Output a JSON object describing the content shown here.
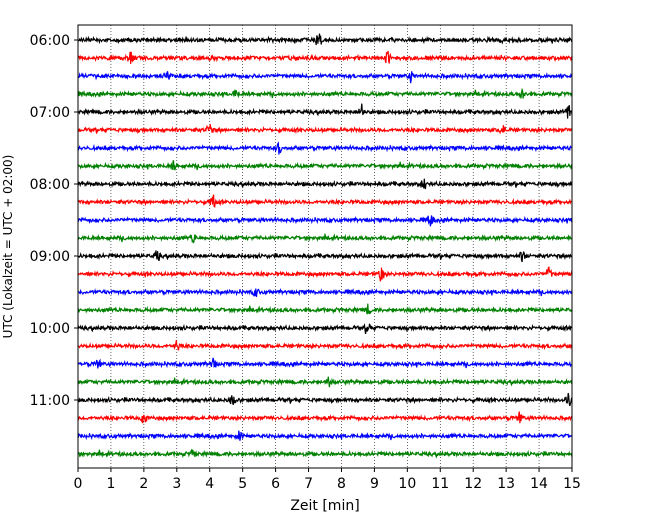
{
  "chart_data": {
    "type": "line",
    "title": "",
    "xlabel": "Zeit  [min]",
    "ylabel": "UTC (Lokalzeit = UTC + 02:00)",
    "xlim": [
      0,
      15
    ],
    "x_ticks": [
      "0",
      "1",
      "2",
      "3",
      "4",
      "5",
      "6",
      "7",
      "8",
      "9",
      "10",
      "11",
      "12",
      "13",
      "14",
      "15"
    ],
    "y_tick_labels": [
      "06:00",
      "07:00",
      "08:00",
      "09:00",
      "10:00",
      "11:00"
    ],
    "traces_start": "06:00",
    "trace_interval_minutes": 15,
    "trace_count": 24,
    "trace_colors": [
      "#000000",
      "#ff0000",
      "#0000ff",
      "#008000"
    ],
    "grid": "vertical dotted",
    "events": [
      {
        "trace": 0,
        "x": 7.3,
        "amp": 1.0
      },
      {
        "trace": 1,
        "x": 1.6,
        "amp": 0.8
      },
      {
        "trace": 1,
        "x": 9.4,
        "amp": 0.8
      },
      {
        "trace": 2,
        "x": 2.7,
        "amp": 0.6
      },
      {
        "trace": 2,
        "x": 10.1,
        "amp": 0.6
      },
      {
        "trace": 3,
        "x": 4.8,
        "amp": 0.6
      },
      {
        "trace": 3,
        "x": 13.5,
        "amp": 0.6
      },
      {
        "trace": 4,
        "x": 8.6,
        "amp": 0.9
      },
      {
        "trace": 4,
        "x": 14.9,
        "amp": 1.0
      },
      {
        "trace": 5,
        "x": 4.0,
        "amp": 0.7
      },
      {
        "trace": 5,
        "x": 12.9,
        "amp": 0.6
      },
      {
        "trace": 6,
        "x": 6.1,
        "amp": 0.6
      },
      {
        "trace": 7,
        "x": 2.9,
        "amp": 0.5
      },
      {
        "trace": 8,
        "x": 10.5,
        "amp": 0.6
      },
      {
        "trace": 9,
        "x": 4.1,
        "amp": 0.9
      },
      {
        "trace": 10,
        "x": 10.7,
        "amp": 0.6
      },
      {
        "trace": 11,
        "x": 3.5,
        "amp": 0.5
      },
      {
        "trace": 12,
        "x": 2.4,
        "amp": 0.6
      },
      {
        "trace": 12,
        "x": 13.5,
        "amp": 0.6
      },
      {
        "trace": 13,
        "x": 9.2,
        "amp": 0.8
      },
      {
        "trace": 13,
        "x": 14.3,
        "amp": 0.7
      },
      {
        "trace": 14,
        "x": 5.4,
        "amp": 0.5
      },
      {
        "trace": 15,
        "x": 8.8,
        "amp": 0.5
      },
      {
        "trace": 16,
        "x": 8.8,
        "amp": 0.6
      },
      {
        "trace": 17,
        "x": 3.0,
        "amp": 0.6
      },
      {
        "trace": 18,
        "x": 0.6,
        "amp": 0.6
      },
      {
        "trace": 18,
        "x": 4.1,
        "amp": 0.6
      },
      {
        "trace": 19,
        "x": 7.6,
        "amp": 0.6
      },
      {
        "trace": 20,
        "x": 4.7,
        "amp": 0.6
      },
      {
        "trace": 20,
        "x": 14.9,
        "amp": 0.8
      },
      {
        "trace": 21,
        "x": 2.0,
        "amp": 0.7
      },
      {
        "trace": 21,
        "x": 13.4,
        "amp": 0.6
      },
      {
        "trace": 22,
        "x": 4.9,
        "amp": 0.5
      },
      {
        "trace": 23,
        "x": 3.5,
        "amp": 0.5
      }
    ]
  }
}
